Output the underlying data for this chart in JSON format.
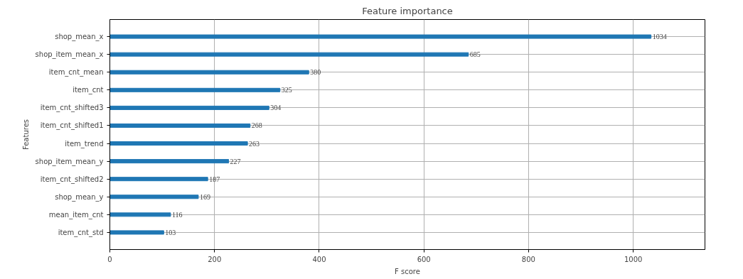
{
  "chart_data": {
    "type": "bar",
    "orientation": "horizontal",
    "title": "Feature importance",
    "xlabel": "F score",
    "ylabel": "Features",
    "categories": [
      "shop_mean_x",
      "shop_item_mean_x",
      "item_cnt_mean",
      "item_cnt",
      "item_cnt_shifted3",
      "item_cnt_shifted1",
      "item_trend",
      "shop_item_mean_y",
      "item_cnt_shifted2",
      "shop_mean_y",
      "mean_item_cnt",
      "item_cnt_std"
    ],
    "values": [
      1034,
      685,
      380,
      325,
      304,
      268,
      263,
      227,
      187,
      169,
      116,
      103
    ],
    "color": "#1f77b4",
    "data_labels": true,
    "xlim": [
      0,
      1137
    ],
    "xticks": [
      0,
      200,
      400,
      600,
      800,
      1000
    ],
    "grid": true
  }
}
